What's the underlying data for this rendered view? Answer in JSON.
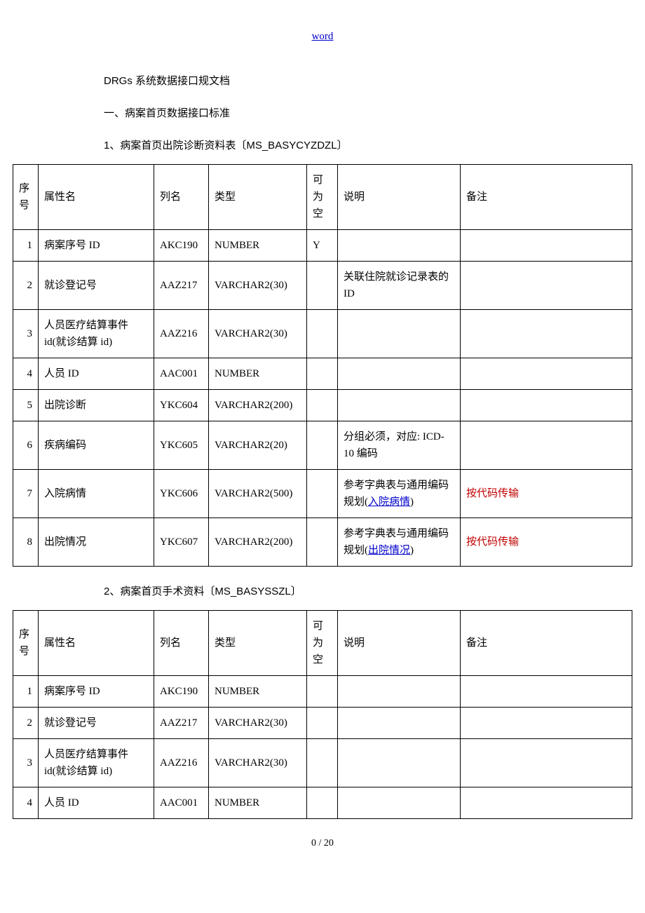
{
  "header_link_text": "word",
  "doc_title": "DRGs 系统数据接口规文档",
  "section_one": "一、病案首页数据接口标准",
  "table1_caption": "1、病案首页出院诊断资料表〔MS_BASYCYZDZL〕",
  "table2_caption": "2、病案首页手术资料〔MS_BASYSSZL〕",
  "columns": {
    "seq": "序号",
    "attr": "属性名",
    "colname": "列名",
    "type": "类型",
    "nullable": "可为空",
    "desc": "说明",
    "note": "备注"
  },
  "table1": {
    "rows": [
      {
        "seq": "1",
        "attr": "病案序号 ID",
        "colname": "AKC190",
        "type": "NUMBER",
        "nullable": "Y",
        "desc": "",
        "note": ""
      },
      {
        "seq": "2",
        "attr": "就诊登记号",
        "colname": "AAZ217",
        "type": "VARCHAR2(30)",
        "nullable": "",
        "desc": "关联住院就诊记录表的 ID",
        "note": ""
      },
      {
        "seq": "3",
        "attr": "人员医疗结算事件id(就诊结算 id)",
        "colname": "AAZ216",
        "type": "VARCHAR2(30)",
        "nullable": "",
        "desc": "",
        "note": ""
      },
      {
        "seq": "4",
        "attr": "人员 ID",
        "colname": "AAC001",
        "type": "NUMBER",
        "nullable": "",
        "desc": "",
        "note": ""
      },
      {
        "seq": "5",
        "attr": "出院诊断",
        "colname": "YKC604",
        "type": "VARCHAR2(200)",
        "nullable": "",
        "desc": "",
        "note": ""
      },
      {
        "seq": "6",
        "attr": "疾病编码",
        "colname": "YKC605",
        "type": "VARCHAR2(20)",
        "nullable": "",
        "desc": "分组必须，对应: ICD-10 编码",
        "note": ""
      },
      {
        "seq": "7",
        "attr": "入院病情",
        "colname": "YKC606",
        "type": "VARCHAR2(500)",
        "nullable": "",
        "desc_prefix": "参考字典表与通用编码规划(",
        "desc_link": "入院病情",
        "desc_suffix": ")",
        "note": "按代码传输",
        "note_red": true
      },
      {
        "seq": "8",
        "attr": "出院情况",
        "colname": "YKC607",
        "type": "VARCHAR2(200)",
        "nullable": "",
        "desc_prefix": "参考字典表与通用编码规划(",
        "desc_link": "出院情况",
        "desc_suffix": ")",
        "note": "按代码传输",
        "note_red": true
      }
    ]
  },
  "table2": {
    "rows": [
      {
        "seq": "1",
        "attr": "病案序号 ID",
        "colname": "AKC190",
        "type": "NUMBER",
        "nullable": "",
        "desc": "",
        "note": ""
      },
      {
        "seq": "2",
        "attr": "就诊登记号",
        "colname": "AAZ217",
        "type": "VARCHAR2(30)",
        "nullable": "",
        "desc": "",
        "note": ""
      },
      {
        "seq": "3",
        "attr": "人员医疗结算事件id(就诊结算 id)",
        "colname": "AAZ216",
        "type": "VARCHAR2(30)",
        "nullable": "",
        "desc": "",
        "note": ""
      },
      {
        "seq": "4",
        "attr": "人员 ID",
        "colname": "AAC001",
        "type": "NUMBER",
        "nullable": "",
        "desc": "",
        "note": ""
      }
    ]
  },
  "footer": "0 / 20"
}
